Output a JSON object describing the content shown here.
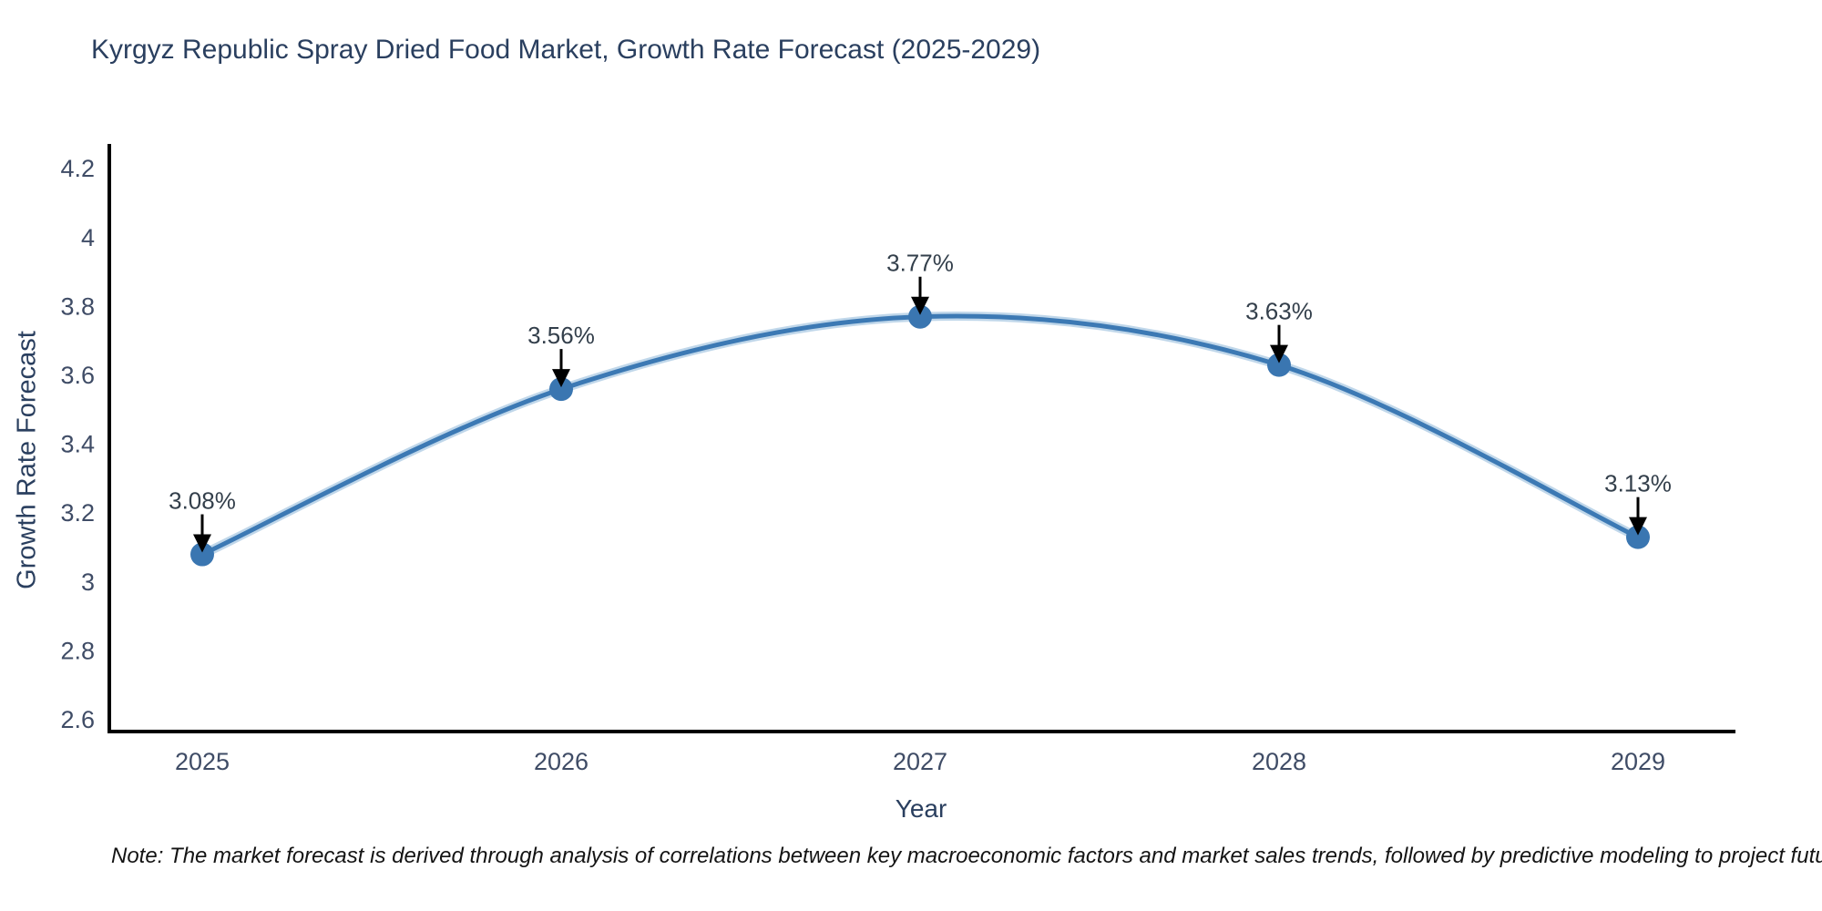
{
  "chart": {
    "title": "Kyrgyz Republic Spray Dried Food Market, Growth Rate Forecast (2025-2029)",
    "xlabel": "Year",
    "ylabel": "Growth Rate Forecast"
  },
  "chart_data": {
    "type": "line",
    "line_shape": "spline",
    "title": "Kyrgyz Republic Spray Dried Food Market, Growth Rate Forecast (2025-2029)",
    "xlabel": "Year",
    "ylabel": "Growth Rate Forecast",
    "categories": [
      "2025",
      "2026",
      "2027",
      "2028",
      "2029"
    ],
    "series": [
      {
        "name": "Growth Rate Forecast",
        "values": [
          3.08,
          3.56,
          3.77,
          3.63,
          3.13
        ],
        "point_labels": [
          "3.08%",
          "3.56%",
          "3.77%",
          "3.63%",
          "3.13%"
        ]
      }
    ],
    "ylim": [
      2.6,
      4.2
    ],
    "ytick_values": [
      2.6,
      2.8,
      3.0,
      3.2,
      3.4,
      3.6,
      3.8,
      4.0,
      4.2
    ],
    "ytick_labels": [
      "2.6",
      "2.8",
      "3",
      "3.2",
      "3.4",
      "3.6",
      "3.8",
      "4",
      "4.2"
    ],
    "grid": false,
    "legend": "none",
    "markers": true,
    "annotations_with_arrows": true,
    "colors": {
      "line": "#3c79b4",
      "line_halo": "rgba(90,150,200,0.38)",
      "marker": "#3a76b1",
      "axis": "#000000",
      "title_text": "#2a3f5f",
      "tick_text": "#3f4c66",
      "annotation_text": "#333f4b",
      "annotation_arrow": "#000000"
    }
  },
  "note": {
    "text": "Note: The market forecast is derived through analysis of correlations between key macroeconomic factors and market sales trends, followed by predictive modeling to project future sales"
  }
}
